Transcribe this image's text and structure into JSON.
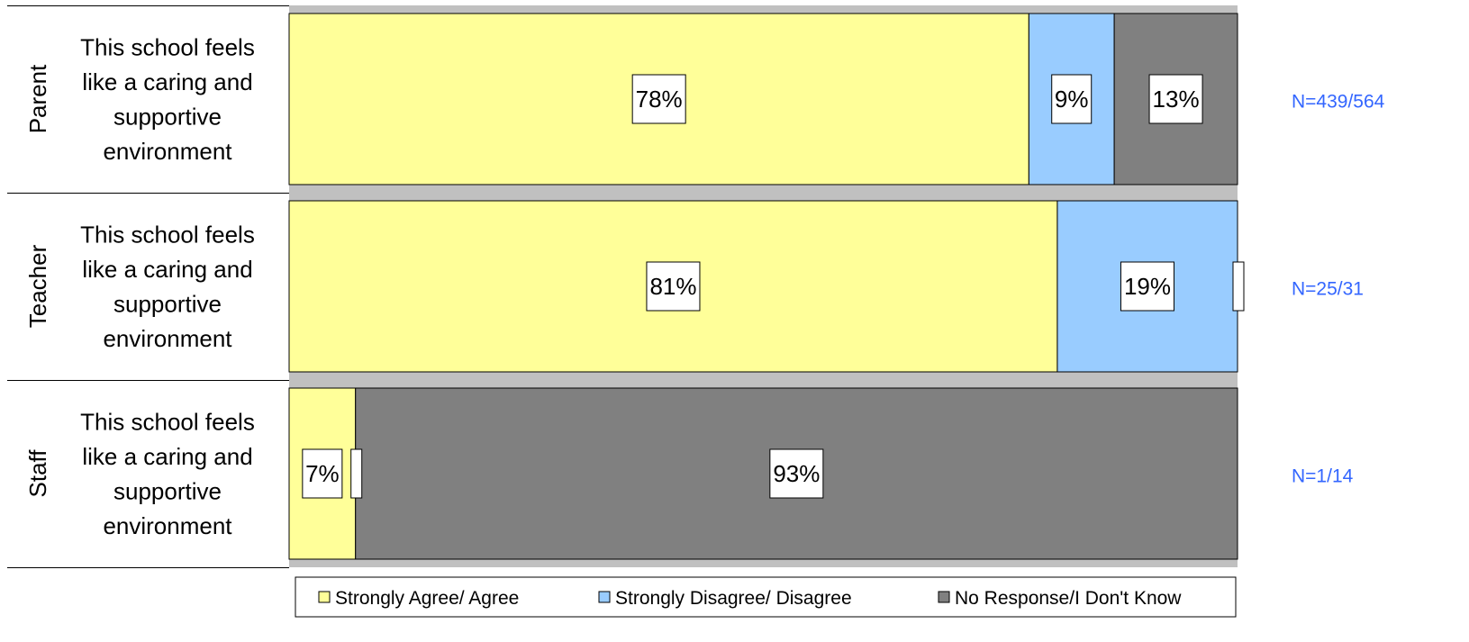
{
  "chart_data": {
    "type": "bar",
    "orientation": "horizontal",
    "stacked": "percent",
    "groups": [
      "Parent",
      "Teacher",
      "Staff"
    ],
    "categories": [
      "This school feels like a caring and supportive environment",
      "This school feels like a caring and supportive environment",
      "This school feels like a caring and supportive environment"
    ],
    "series": [
      {
        "name": "Strongly Agree/ Agree",
        "values": [
          78,
          81,
          7
        ],
        "labels": [
          "78%",
          "81%",
          "7%"
        ],
        "color": "#ffff99"
      },
      {
        "name": "Strongly Disagree/ Disagree",
        "values": [
          9,
          19,
          0
        ],
        "labels": [
          "9%",
          "19%",
          ""
        ],
        "color": "#99ccff"
      },
      {
        "name": "No Response/I Don't Know",
        "values": [
          13,
          0,
          93
        ],
        "labels": [
          "13%",
          "",
          "93%"
        ],
        "color": "#808080"
      }
    ],
    "n_labels": [
      "N=439/564",
      "N=25/31",
      "N=1/14"
    ],
    "xlim": [
      0,
      100
    ],
    "legend_position": "bottom",
    "background_color": "#c0c0c0",
    "n_label_color": "#3366ff"
  }
}
